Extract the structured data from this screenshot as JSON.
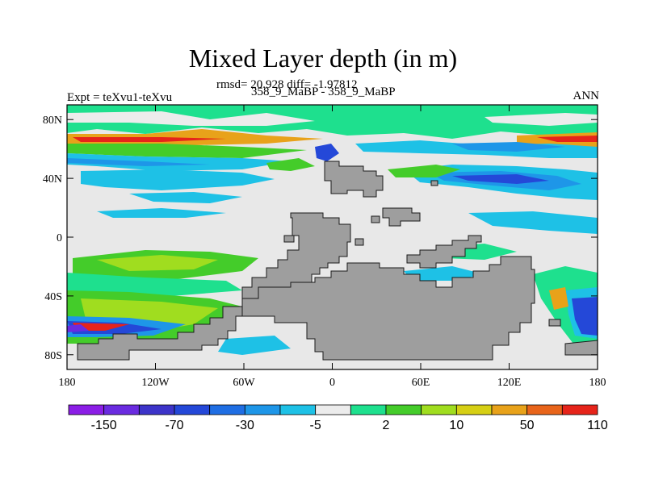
{
  "title": "Mixed Layer depth (in m)",
  "subtitle_rmsd": "rmsd= 20.928 diff= -1.97812",
  "subtitle_run": "358_9_MaBP - 358_9_MaBP",
  "left_label": "Expt = teXvu1-teXvu",
  "right_label": "ANN",
  "map": {
    "x_ticks": [
      "180",
      "120W",
      "60W",
      "0",
      "60E",
      "120E",
      "180"
    ],
    "y_ticks": [
      "80N",
      "40N",
      "0",
      "40S",
      "80S"
    ],
    "land_color": "#9e9e9e",
    "ocean_background_color": "#e8e8e8"
  },
  "colorbar": {
    "colors": [
      "#8b1ee6",
      "#6a2be0",
      "#3d34c9",
      "#2448d8",
      "#1f6ee3",
      "#1e96e8",
      "#1ec1e6",
      "#ececec",
      "#1ee08e",
      "#44cc2a",
      "#a0dd1f",
      "#d6cf14",
      "#e8a21a",
      "#e8641a",
      "#e6241a"
    ],
    "labels": [
      "-150",
      "-70",
      "-30",
      "-5",
      "2",
      "10",
      "50",
      "110"
    ]
  }
}
